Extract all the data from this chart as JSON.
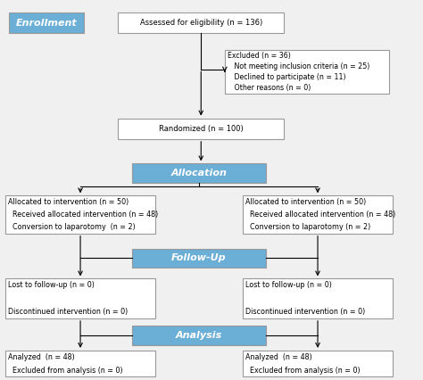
{
  "bg_color": "#f0f0f0",
  "blue_fill": "#6baed6",
  "box_edge": "#999999",
  "enrollment_label": "Enrollment",
  "assess_text": "Assessed for eligibility (n = 136)",
  "excluded_lines": [
    "Excluded (n = 36)",
    "   Not meeting inclusion criteria (n = 25)",
    "   Declined to participate (n = 11)",
    "   Other reasons (n = 0)"
  ],
  "random_text": "Randomized (n = 100)",
  "alloc_label": "Allocation",
  "left_alloc_lines": [
    "Allocated to intervention (n = 50)",
    "  Received allocated intervention (n = 48)",
    "  Conversion to laparotomy  (n = 2)"
  ],
  "right_alloc_lines": [
    "Allocated to intervention (n = 50)",
    "  Received allocated intervention (n = 48)",
    "  Conversion to laparotomy (n = 2)"
  ],
  "followup_label": "Follow-Up",
  "left_fu_lines": [
    "Lost to follow-up (n = 0)",
    "",
    "Discontinued intervention (n = 0)"
  ],
  "right_fu_lines": [
    "Lost to follow-up (n = 0)",
    "",
    "Discontinued intervention (n = 0)"
  ],
  "analysis_label": "Analysis",
  "left_an_lines": [
    "Analyzed  (n = 48)",
    "  Excluded from analysis (n = 0)"
  ],
  "right_an_lines": [
    "Analyzed  (n = 48)",
    "  Excluded from analysis (n = 0)"
  ],
  "fontsize": 6.0,
  "label_fontsize": 8.0
}
